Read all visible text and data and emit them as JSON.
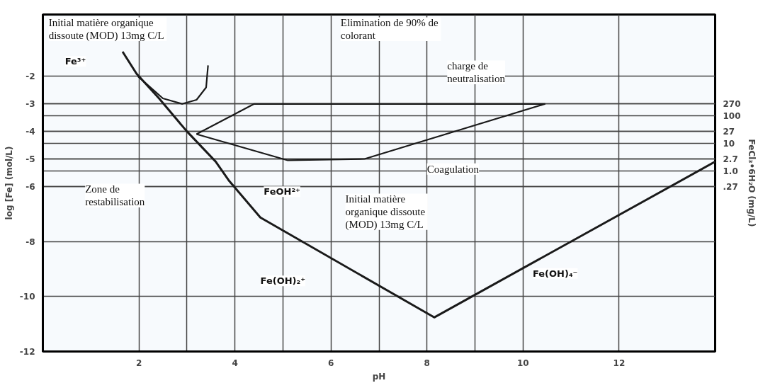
{
  "chart_data": {
    "type": "line",
    "xlabel": "pH",
    "ylabel": "log [Fe] (mol/L)",
    "y2label": "FeCl₃•6H₂O (mg/L)",
    "xlim": [
      0,
      14
    ],
    "ylim": [
      -12,
      0.25
    ],
    "y2lim": [
      2.7e-07,
      480000
    ],
    "log": "y2",
    "xticks": [
      2,
      {
        "value": 3,
        "label": null
      },
      4,
      {
        "value": 5,
        "label": null
      },
      6,
      {
        "value": 7,
        "label": null
      },
      8,
      {
        "value": 9,
        "label": null
      },
      10,
      12
    ],
    "yticks": [
      -2,
      -3,
      -4,
      -5,
      -6,
      -8,
      -10,
      -12
    ],
    "y2ticks": [
      270,
      100,
      27,
      10,
      2.7,
      {
        "value": 1,
        "label": "1.0"
      },
      {
        "value": 0.27,
        "label": ".27"
      }
    ],
    "grid": true,
    "marker": "none",
    "line_style": "solid",
    "series": [
      {
        "color": "#1a1a1a",
        "x": [
          1.66,
          1.95,
          2.42,
          3.0,
          3.6,
          3.88,
          4.53,
          8.15,
          14
        ],
        "values": [
          -1.1,
          -1.9,
          -2.8,
          -4.0,
          -5.1,
          -5.8,
          -7.13,
          -10.76,
          -5.1
        ]
      },
      {
        "color": "#1a1a1a",
        "x": [
          1.98,
          2.5,
          2.9,
          3.2,
          3.4,
          3.44
        ],
        "values": [
          -2.0,
          -2.8,
          -3.0,
          -2.85,
          -2.4,
          -1.6
        ]
      },
      {
        "color": "#1a1a1a",
        "x": [
          3.2,
          4.4,
          10.46
        ],
        "values": [
          -4.1,
          -3.0,
          -3.0
        ]
      },
      {
        "color": "#1a1a1a",
        "x": [
          3.2,
          5.1,
          6.7,
          10.46
        ],
        "values": [
          -4.1,
          -5.05,
          -5.0,
          -3.0
        ]
      }
    ],
    "annotations": [
      "Initial matière organique\ndissoute  (MOD) 13mg C/L",
      "Elimination  de 90% de\ncolorant",
      "charge  de\nneutralisation",
      "Coagulation",
      "Zone de\nrestabilisation",
      "Initial matière\norganique  dissoute\n(MOD) 13mg  C/L",
      "Fe³⁺",
      "FeOH²⁺",
      "Fe(OH)₂⁺",
      "Fe(OH)₄⁻"
    ]
  }
}
